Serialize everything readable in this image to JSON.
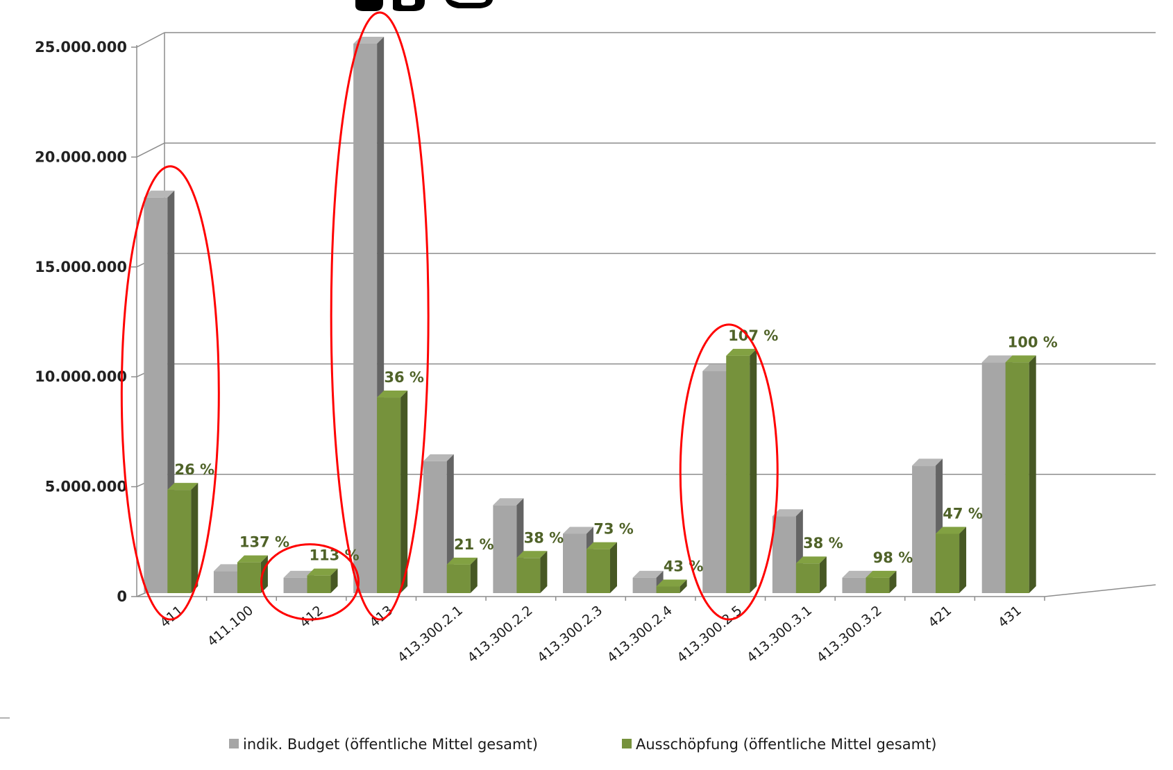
{
  "chart_data": {
    "type": "bar",
    "title": "",
    "xlabel": "",
    "ylabel": "",
    "ylim": [
      0,
      25000000
    ],
    "grid": true,
    "legend_position": "bottom",
    "y_ticks": [
      {
        "value": 0,
        "label": "0"
      },
      {
        "value": 5000000,
        "label": "5.000.000"
      },
      {
        "value": 10000000,
        "label": "10.000.000"
      },
      {
        "value": 15000000,
        "label": "15.000.000"
      },
      {
        "value": 20000000,
        "label": "20.000.000"
      },
      {
        "value": 25000000,
        "label": "25.000.000"
      }
    ],
    "categories": [
      "411",
      "411.100",
      "412",
      "413",
      "413.300.2.1",
      "413.300.2.2",
      "413.300.2.3",
      "413.300.2.4",
      "413.300.2.5",
      "413.300.3.1",
      "413.300.3.2",
      "421",
      "431"
    ],
    "series": [
      {
        "name": "indik. Budget (öffentliche Mittel gesamt)",
        "color": "#a6a6a6",
        "values": [
          18000000,
          1000000,
          700000,
          25000000,
          6000000,
          4000000,
          2700000,
          700000,
          10100000,
          3500000,
          700000,
          5800000,
          10500000
        ]
      },
      {
        "name": "Ausschöpfung (öffentliche Mittel gesamt)",
        "color": "#76923c",
        "values": [
          4700000,
          1400000,
          800000,
          8900000,
          1300000,
          1600000,
          2000000,
          300000,
          10800000,
          1350000,
          700000,
          2700000,
          10500000
        ]
      }
    ],
    "percent_labels": [
      "26 %",
      "137 %",
      "113 %",
      "36 %",
      "21 %",
      "38 %",
      "73 %",
      "43 %",
      "107 %",
      "38 %",
      "98 %",
      "47 %",
      "100 %"
    ],
    "highlighted_categories": [
      "411",
      "412",
      "413",
      "413.300.2.5"
    ],
    "highlight_color": "#ff0000"
  }
}
